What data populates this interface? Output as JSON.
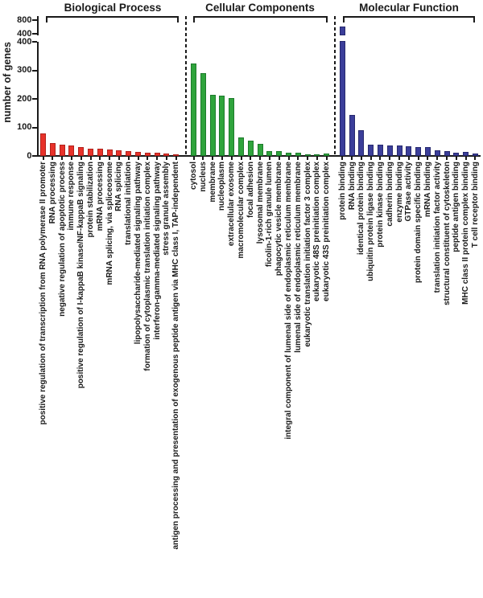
{
  "figure": {
    "background": "#ffffff",
    "text_color": "#1a1a1a"
  },
  "chart_data": {
    "type": "bar",
    "title": "",
    "xlabel": "",
    "ylabel": "number of genes",
    "grid": false,
    "legend": "none",
    "y_axis": {
      "broken": true,
      "lower_range": [
        0,
        400
      ],
      "upper_range": [
        400,
        800
      ],
      "lower_ticks": [
        0,
        100,
        200,
        300,
        400
      ],
      "upper_ticks": [
        400,
        800
      ]
    },
    "groups": [
      {
        "name": "Biological Process",
        "color": "#e8322a",
        "edge_color": "#b1221c",
        "categories": [
          "positive regulation of transcription from RNA polymerase II promoter",
          "RNA processing",
          "negative regulation of apoptotic process",
          "immune response",
          "positive regulation of I-kappaB kinase/NF-kappaB signaling",
          "protein stabilization",
          "mRNA processing",
          "mRNA splicing, via spliceosome",
          "RNA splicing",
          "translational initiation",
          "lipopolysaccharide-mediated signaling pathway",
          "formation of cytoplasmic translation initiation complex",
          "interferon-gamma-mediated signaling pathway",
          "stress granule assembly",
          "antigen processing and presentation of exogenous peptide antigen via MHC class I, TAP-independent"
        ],
        "values": [
          80,
          45,
          40,
          38,
          30,
          25,
          25,
          22,
          21,
          18,
          13,
          12,
          11,
          9,
          7
        ]
      },
      {
        "name": "Cellular Components",
        "color": "#2fa43c",
        "edge_color": "#1d7a2b",
        "categories": [
          "cytosol",
          "nucleus",
          "membrane",
          "nucleoplasm",
          "extracellular exosome",
          "macromolecular complex",
          "focal adhesion",
          "lysosomal membrane",
          "ficolin-1-rich granule lumen",
          "phagocytic vesicle membrane",
          "integral component of lumenal side of endoplasmic reticulum membrane",
          "lumenal side of endoplasmic reticulum membrane",
          "eukaryotic translation initiation factor 3 complex",
          "eukaryotic 48S preinitiation complex",
          "eukaryotic 43S preinitiation complex"
        ],
        "values": [
          325,
          290,
          214,
          211,
          203,
          65,
          53,
          41,
          18,
          16,
          10,
          10,
          7,
          7,
          8
        ]
      },
      {
        "name": "Molecular Function",
        "color": "#3b3e9a",
        "edge_color": "#27296e",
        "categories": [
          "protein binding",
          "RNA binding",
          "identical protein binding",
          "ubiquitin protein ligase binding",
          "protein kinase binding",
          "cadherin binding",
          "enzyme binding",
          "GTPase activity",
          "protein domain specific binding",
          "mRNA binding",
          "translation initiation factor activity",
          "structural constituent of cytoskeleton",
          "peptide antigen binding",
          "MHC class II protein complex binding",
          "T cell receptor binding"
        ],
        "values": [
          620,
          145,
          91,
          40,
          40,
          37,
          37,
          34,
          32,
          30,
          21,
          18,
          12,
          14,
          9
        ]
      }
    ]
  }
}
